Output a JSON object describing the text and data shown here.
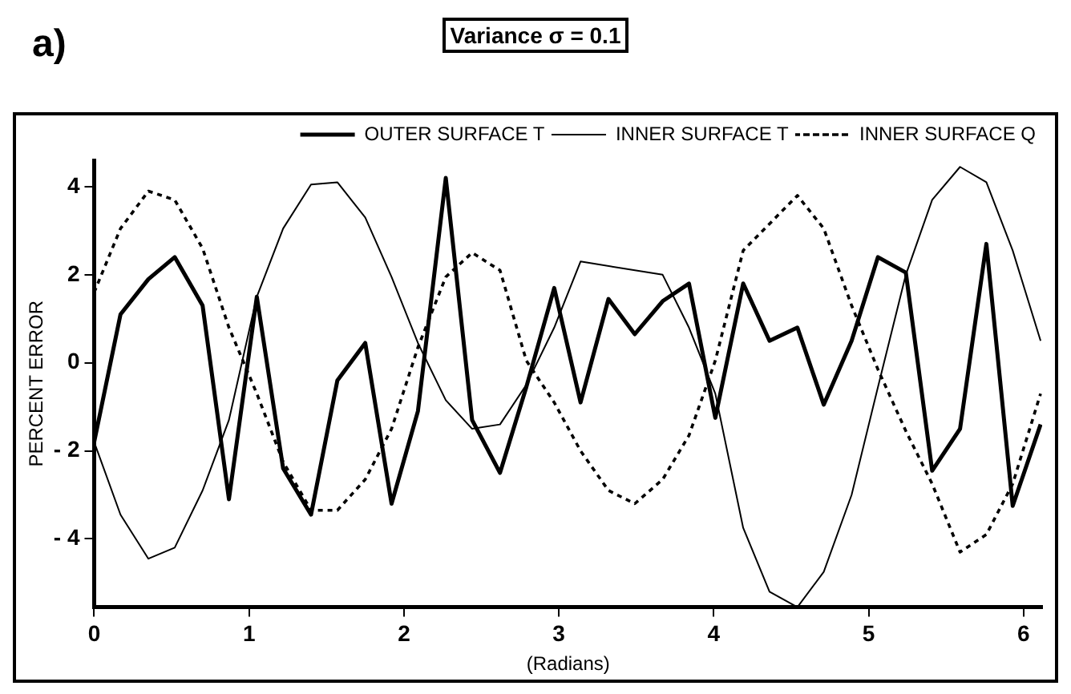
{
  "chart_data": {
    "type": "line",
    "title": "Variance σ = 0.1",
    "annotations": [
      "a)"
    ],
    "xlabel": "(Radians)",
    "ylabel": "PERCENT ERROR",
    "x": [
      0,
      0.17,
      0.35,
      0.52,
      0.7,
      0.87,
      1.05,
      1.22,
      1.4,
      1.57,
      1.75,
      1.92,
      2.09,
      2.27,
      2.44,
      2.62,
      2.79,
      2.97,
      3.14,
      3.32,
      3.49,
      3.67,
      3.84,
      4.01,
      4.19,
      4.36,
      4.54,
      4.71,
      4.89,
      5.06,
      5.24,
      5.41,
      5.59,
      5.76,
      5.93,
      6.11
    ],
    "series": [
      {
        "name": "OUTER SURFACE T",
        "color": "#000000",
        "line_style": "solid",
        "values": [
          -1.8,
          1.1,
          1.9,
          2.4,
          1.3,
          -3.1,
          1.5,
          -2.4,
          -3.45,
          -0.4,
          0.45,
          -3.2,
          -1.1,
          4.2,
          -1.3,
          -2.5,
          -0.55,
          1.7,
          -0.9,
          1.45,
          0.65,
          1.4,
          1.8,
          -1.25,
          1.8,
          0.5,
          0.8,
          -0.95,
          0.5,
          2.4,
          2.05,
          -2.45,
          -1.5,
          2.7,
          -3.25,
          -1.4
        ]
      },
      {
        "name": "INNER SURFACE T",
        "color": "#000000",
        "line_style": "solid",
        "values": [
          -1.8,
          -3.45,
          -4.45,
          -4.2,
          -2.9,
          -1.3,
          1.5,
          3.05,
          4.05,
          4.1,
          3.3,
          1.95,
          0.45,
          -0.85,
          -1.5,
          -1.4,
          -0.5,
          0.8,
          2.3,
          null,
          null,
          2.0,
          0.8,
          -0.7,
          -3.75,
          -5.2,
          -5.55,
          -4.75,
          -3.0,
          -0.55,
          2.0,
          3.7,
          4.45,
          4.1,
          2.55,
          0.5
        ]
      },
      {
        "name": "INNER SURFACE Q",
        "color": "#000000",
        "line_style": "dotted",
        "values": [
          1.6,
          3.05,
          3.9,
          3.7,
          2.6,
          0.8,
          -0.7,
          -2.25,
          -3.35,
          -3.35,
          -2.65,
          -1.5,
          0.35,
          1.95,
          2.5,
          2.1,
          0.05,
          -0.9,
          -2.0,
          -2.9,
          -3.2,
          -2.65,
          -1.65,
          0.05,
          2.55,
          null,
          3.8,
          3.05,
          1.3,
          -0.15,
          -1.55,
          -2.75,
          -4.3,
          -3.9,
          -2.75,
          -0.7
        ]
      }
    ],
    "xlim": [
      0,
      6.12
    ],
    "xticks": [
      0,
      1,
      2,
      3,
      4,
      5,
      6
    ],
    "ylim": [
      -5.55,
      4.6
    ],
    "yticks": [
      4,
      2,
      0,
      {
        "value": -2,
        "label": "- 2"
      },
      {
        "value": -4,
        "label": "- 4"
      }
    ],
    "grid": false,
    "legend": "top right",
    "marker": "none"
  }
}
